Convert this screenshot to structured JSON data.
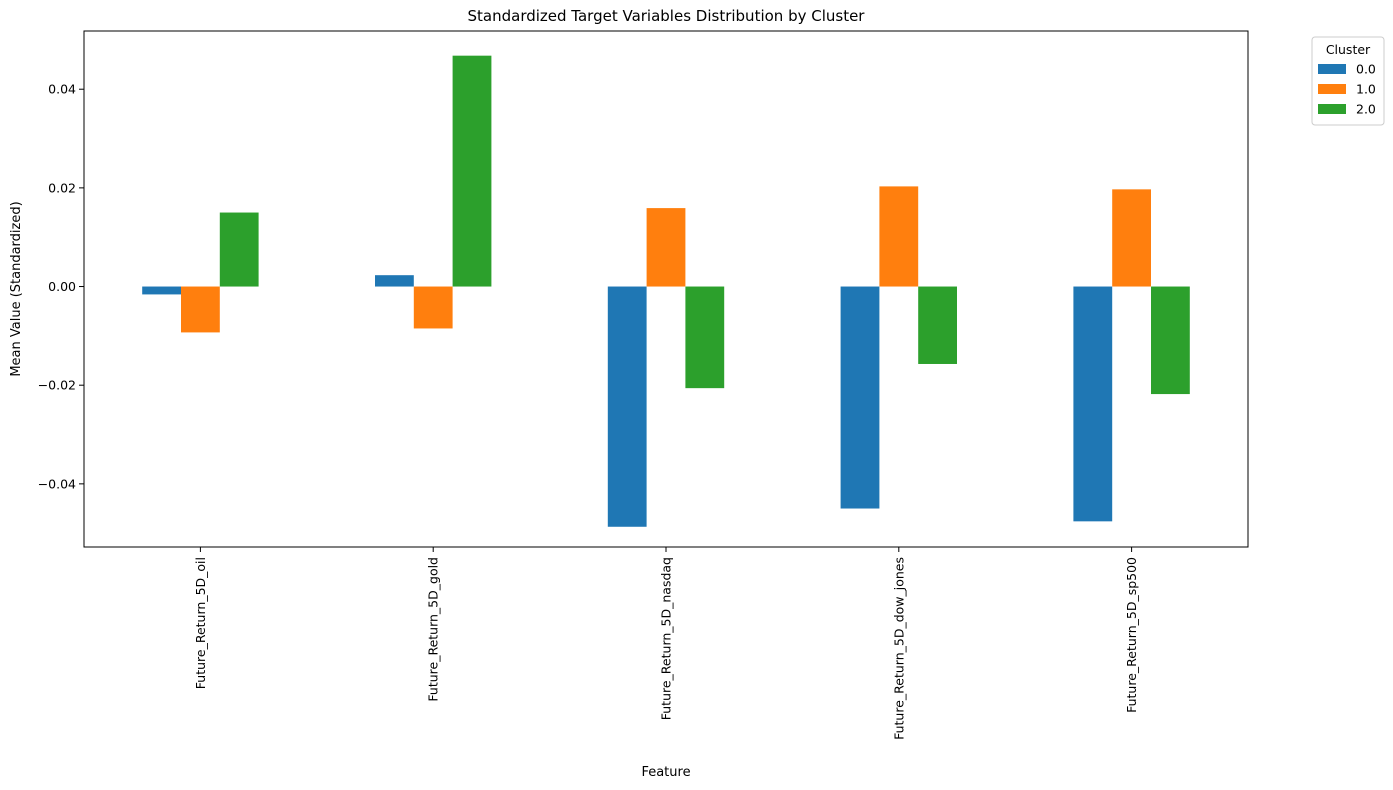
{
  "chart_data": {
    "type": "bar",
    "title": "Standardized Target Variables Distribution by Cluster",
    "xlabel": "Feature",
    "ylabel": "Mean Value (Standardized)",
    "categories": [
      "Future_Return_5D_oil",
      "Future_Return_5D_gold",
      "Future_Return_5D_nasdaq",
      "Future_Return_5D_dow_jones",
      "Future_Return_5D_sp500"
    ],
    "series": [
      {
        "name": "0.0",
        "color": "#1f77b4",
        "values": [
          -0.0016,
          0.0023,
          -0.0487,
          -0.045,
          -0.0476
        ]
      },
      {
        "name": "1.0",
        "color": "#ff7f0e",
        "values": [
          -0.0093,
          -0.0085,
          0.0159,
          0.0203,
          0.0197
        ]
      },
      {
        "name": "2.0",
        "color": "#2ca02c",
        "values": [
          0.015,
          0.0468,
          -0.0206,
          -0.0157,
          -0.0218
        ]
      }
    ],
    "ylim": [
      -0.0528,
      0.0518
    ],
    "yticks": [
      -0.04,
      -0.02,
      0.0,
      0.02,
      0.04
    ],
    "ytick_labels": [
      "−0.04",
      "−0.02",
      "0.00",
      "0.02",
      "0.04"
    ],
    "grid": false,
    "legend": {
      "title": "Cluster",
      "placement": "outside-top-right",
      "entries": [
        "0.0",
        "1.0",
        "2.0"
      ]
    }
  }
}
